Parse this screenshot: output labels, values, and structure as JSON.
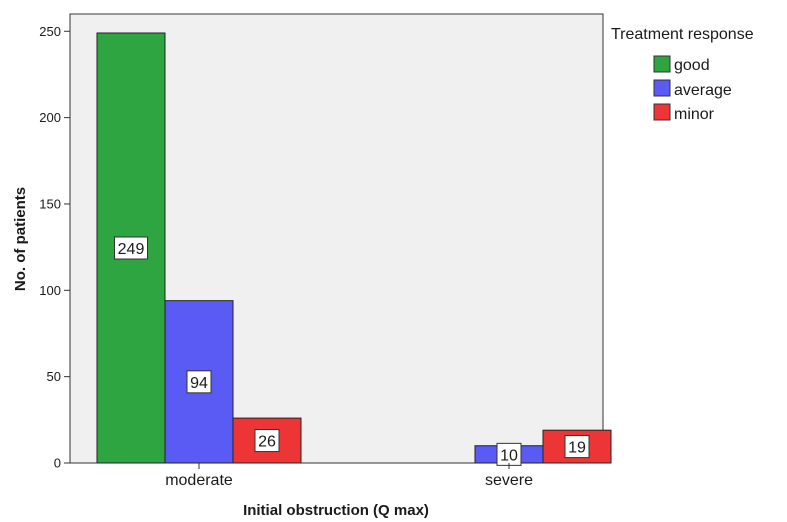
{
  "chart_data": {
    "type": "bar",
    "categories": [
      "moderate",
      "severe"
    ],
    "series": [
      {
        "name": "good",
        "values": [
          249,
          null
        ],
        "color": "#2ea541"
      },
      {
        "name": "average",
        "values": [
          94,
          10
        ],
        "color": "#5a5af5"
      },
      {
        "name": "minor",
        "values": [
          26,
          19
        ],
        "color": "#ee3535"
      }
    ],
    "data_labels": [
      "249",
      "94",
      "26",
      "10",
      "19"
    ],
    "xlabel": "Initial obstruction (Q max)",
    "ylabel": "No. of patients",
    "ylim": [
      0,
      260
    ],
    "yticks": [
      0,
      50,
      100,
      150,
      200,
      250
    ],
    "ytick_labels": [
      "0",
      "50",
      "100",
      "150",
      "200",
      "250"
    ],
    "legend": {
      "title": "Treatment response",
      "position": "top-right",
      "items": [
        "good",
        "average",
        "minor"
      ]
    },
    "grid": false,
    "plot_background": "#f0f0f0"
  }
}
